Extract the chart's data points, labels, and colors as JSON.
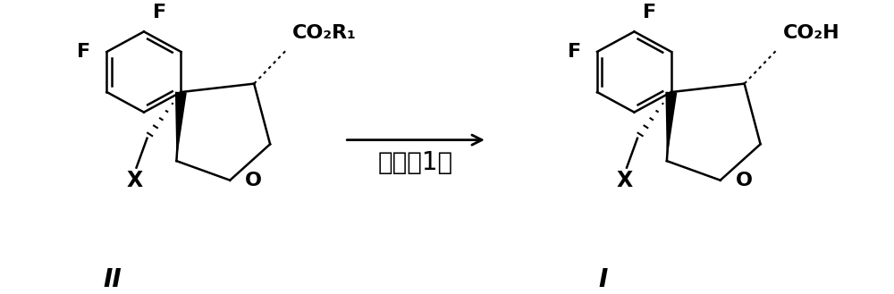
{
  "background_color": "#ffffff",
  "arrow_label": "步骤（1）",
  "compound_left_label": "II",
  "compound_right_label": "I",
  "left_substituent": "CO₂R₁",
  "right_substituent": "CO₂H",
  "fig_width": 10.0,
  "fig_height": 3.29,
  "dpi": 100,
  "text_color": "#000000",
  "label_fontsize": 15,
  "arrow_label_fontsize": 20,
  "compound_label_fontsize": 20,
  "subst_fontsize": 16
}
